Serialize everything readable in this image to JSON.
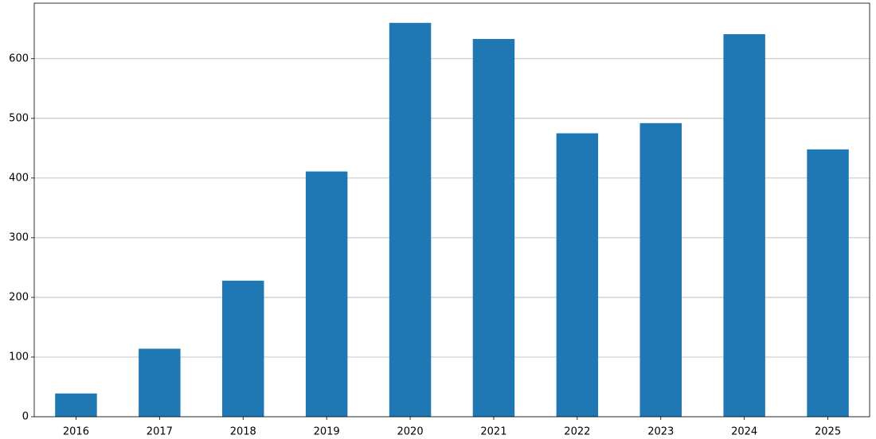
{
  "chart_data": {
    "type": "bar",
    "categories": [
      "2016",
      "2017",
      "2018",
      "2019",
      "2020",
      "2021",
      "2022",
      "2023",
      "2024",
      "2025"
    ],
    "values": [
      39,
      114,
      228,
      411,
      660,
      633,
      475,
      492,
      641,
      448
    ],
    "color": "#1f77b4",
    "ylim": [
      0,
      693
    ],
    "yticks": [
      0,
      100,
      200,
      300,
      400,
      500,
      600
    ],
    "grid": true
  }
}
